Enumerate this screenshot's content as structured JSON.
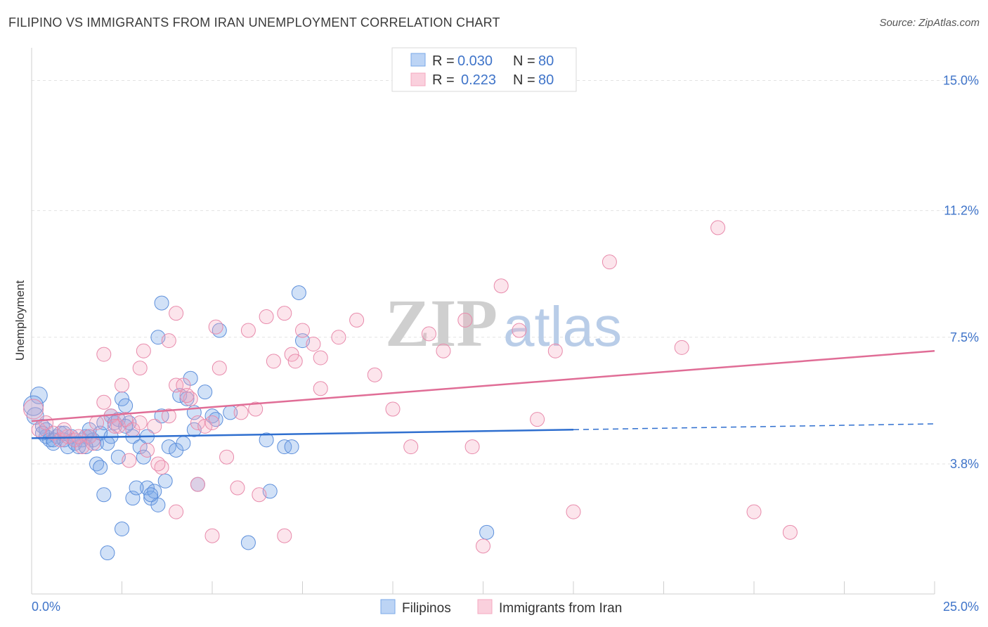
{
  "title": "FILIPINO VS IMMIGRANTS FROM IRAN UNEMPLOYMENT CORRELATION CHART",
  "source": "Source: ZipAtlas.com",
  "watermark": {
    "zip": "ZIP",
    "atlas": "atlas"
  },
  "chart_data": {
    "type": "scatter",
    "title": "FILIPINO VS IMMIGRANTS FROM IRAN UNEMPLOYMENT CORRELATION CHART",
    "xlabel": "",
    "ylabel": "Unemployment",
    "xlim": [
      0,
      25
    ],
    "ylim": [
      0,
      15.75
    ],
    "x_tick_labels": [
      "0.0%",
      "25.0%"
    ],
    "y_ticks": [
      3.8,
      7.5,
      11.2,
      15.0
    ],
    "y_tick_labels": [
      "3.8%",
      "7.5%",
      "11.2%",
      "15.0%"
    ],
    "grid": true,
    "legend": [
      {
        "name": "Filipinos",
        "r_label": "R = ",
        "r_value": "0.030",
        "n_label": "N = ",
        "n_value": "80",
        "color": "#7aa8e8",
        "stroke": "#4f86d6"
      },
      {
        "name": "Immigrants from Iran",
        "r_label": "R = ",
        "r_value": "0.223",
        "n_label": "N = ",
        "n_value": "80",
        "color": "#f4a8c0",
        "stroke": "#e07a9c"
      }
    ],
    "trend_lines": [
      {
        "series": "Filipinos",
        "x_start": 0,
        "y_start": 4.55,
        "x_solid_end": 15,
        "y_solid_end": 4.8,
        "x_end": 25,
        "y_end": 4.97,
        "color": "#2f6fcf"
      },
      {
        "series": "Immigrants from Iran",
        "x_start": 0,
        "y_start": 5.05,
        "x_end": 25,
        "y_end": 7.1,
        "color": "#e06d96"
      }
    ],
    "series": [
      {
        "name": "Filipinos",
        "points": [
          [
            0.2,
            5.8
          ],
          [
            0.1,
            5.2
          ],
          [
            0.3,
            4.9
          ],
          [
            0.4,
            4.6
          ],
          [
            0.5,
            4.5
          ],
          [
            0.6,
            4.4
          ],
          [
            0.7,
            4.6
          ],
          [
            0.8,
            4.7
          ],
          [
            0.9,
            4.5
          ],
          [
            1.0,
            4.3
          ],
          [
            1.1,
            4.6
          ],
          [
            1.2,
            4.4
          ],
          [
            1.3,
            4.3
          ],
          [
            1.4,
            4.5
          ],
          [
            1.5,
            4.6
          ],
          [
            1.6,
            4.8
          ],
          [
            1.7,
            4.5
          ],
          [
            1.8,
            4.4
          ],
          [
            1.9,
            4.7
          ],
          [
            2.0,
            5.0
          ],
          [
            2.1,
            4.4
          ],
          [
            2.2,
            5.2
          ],
          [
            2.3,
            5.0
          ],
          [
            2.4,
            5.1
          ],
          [
            2.5,
            5.7
          ],
          [
            2.6,
            5.5
          ],
          [
            2.7,
            5.0
          ],
          [
            2.8,
            4.6
          ],
          [
            3.0,
            4.3
          ],
          [
            3.1,
            4.0
          ],
          [
            3.2,
            3.1
          ],
          [
            3.3,
            2.8
          ],
          [
            3.4,
            3.0
          ],
          [
            3.5,
            2.6
          ],
          [
            3.6,
            5.2
          ],
          [
            3.7,
            3.3
          ],
          [
            3.8,
            4.3
          ],
          [
            4.0,
            4.2
          ],
          [
            4.1,
            5.8
          ],
          [
            4.2,
            4.4
          ],
          [
            4.3,
            5.7
          ],
          [
            4.4,
            6.3
          ],
          [
            4.5,
            4.8
          ],
          [
            4.6,
            3.2
          ],
          [
            4.8,
            5.9
          ],
          [
            5.0,
            5.2
          ],
          [
            5.2,
            7.7
          ],
          [
            5.5,
            5.3
          ],
          [
            6.0,
            1.5
          ],
          [
            6.5,
            4.5
          ],
          [
            6.6,
            3.0
          ],
          [
            7.0,
            4.3
          ],
          [
            7.2,
            4.3
          ],
          [
            7.5,
            7.4
          ],
          [
            7.4,
            8.8
          ],
          [
            3.5,
            7.5
          ],
          [
            3.6,
            8.5
          ],
          [
            2.5,
            1.9
          ],
          [
            2.1,
            1.2
          ],
          [
            1.8,
            3.8
          ],
          [
            1.9,
            3.7
          ],
          [
            2.0,
            2.9
          ],
          [
            2.8,
            2.8
          ],
          [
            2.9,
            3.1
          ],
          [
            3.3,
            2.9
          ],
          [
            2.4,
            4.0
          ],
          [
            1.2,
            4.5
          ],
          [
            0.9,
            4.7
          ],
          [
            0.6,
            4.5
          ],
          [
            0.4,
            4.8
          ],
          [
            0.3,
            4.7
          ],
          [
            1.5,
            4.3
          ],
          [
            1.6,
            4.6
          ],
          [
            2.2,
            4.6
          ],
          [
            2.6,
            4.9
          ],
          [
            3.2,
            4.6
          ],
          [
            4.5,
            5.3
          ],
          [
            5.1,
            5.1
          ],
          [
            12.6,
            1.8
          ],
          [
            0.05,
            5.5
          ]
        ],
        "sizes": [
          12,
          12,
          10,
          10,
          10,
          10,
          10,
          10,
          10,
          10,
          10,
          10,
          10,
          10,
          10,
          10,
          10,
          10,
          10,
          10,
          10,
          10,
          10,
          10,
          10,
          10,
          10,
          10,
          10,
          10,
          10,
          10,
          10,
          10,
          10,
          10,
          10,
          10,
          10,
          10,
          10,
          10,
          10,
          10,
          10,
          10,
          10,
          10,
          10,
          10,
          10,
          10,
          10,
          10,
          10,
          10,
          10,
          10,
          10,
          10,
          10,
          10,
          10,
          10,
          10,
          10,
          10,
          10,
          10,
          10,
          10,
          10,
          10,
          10,
          10,
          10,
          10,
          10,
          10,
          14
        ]
      },
      {
        "name": "Immigrants from Iran",
        "points": [
          [
            0.05,
            5.4
          ],
          [
            0.2,
            4.8
          ],
          [
            0.4,
            5.0
          ],
          [
            0.6,
            4.7
          ],
          [
            0.8,
            4.5
          ],
          [
            1.0,
            4.6
          ],
          [
            1.2,
            4.5
          ],
          [
            1.4,
            4.3
          ],
          [
            1.6,
            4.6
          ],
          [
            1.8,
            5.0
          ],
          [
            2.0,
            5.6
          ],
          [
            2.2,
            5.2
          ],
          [
            2.4,
            4.9
          ],
          [
            2.6,
            5.1
          ],
          [
            2.8,
            4.8
          ],
          [
            3.0,
            5.0
          ],
          [
            3.2,
            4.2
          ],
          [
            3.4,
            4.9
          ],
          [
            3.6,
            3.7
          ],
          [
            3.8,
            5.2
          ],
          [
            4.0,
            6.1
          ],
          [
            4.2,
            6.1
          ],
          [
            4.4,
            5.7
          ],
          [
            4.6,
            5.0
          ],
          [
            4.8,
            4.9
          ],
          [
            5.0,
            5.0
          ],
          [
            5.2,
            6.6
          ],
          [
            5.4,
            4.0
          ],
          [
            6.0,
            7.7
          ],
          [
            6.2,
            5.4
          ],
          [
            6.5,
            8.1
          ],
          [
            6.7,
            6.8
          ],
          [
            7.0,
            8.2
          ],
          [
            7.2,
            7.0
          ],
          [
            7.5,
            7.7
          ],
          [
            7.8,
            7.3
          ],
          [
            8.0,
            6.9
          ],
          [
            8.5,
            7.5
          ],
          [
            9.0,
            8.0
          ],
          [
            9.5,
            6.4
          ],
          [
            10.0,
            5.4
          ],
          [
            10.5,
            4.3
          ],
          [
            11.0,
            7.6
          ],
          [
            12.0,
            8.0
          ],
          [
            12.2,
            4.3
          ],
          [
            13.0,
            9.0
          ],
          [
            13.5,
            7.7
          ],
          [
            14.0,
            5.1
          ],
          [
            14.5,
            7.1
          ],
          [
            15.0,
            2.4
          ],
          [
            16.0,
            9.7
          ],
          [
            18.0,
            7.2
          ],
          [
            19.0,
            10.7
          ],
          [
            20.0,
            2.4
          ],
          [
            21.0,
            1.8
          ],
          [
            12.5,
            1.4
          ],
          [
            11.4,
            7.1
          ],
          [
            8.0,
            6.0
          ],
          [
            7.0,
            1.7
          ],
          [
            5.7,
            3.1
          ],
          [
            5.0,
            1.7
          ],
          [
            4.6,
            3.2
          ],
          [
            4.0,
            2.4
          ],
          [
            3.5,
            3.8
          ],
          [
            3.0,
            6.6
          ],
          [
            2.5,
            6.1
          ],
          [
            2.0,
            7.0
          ],
          [
            3.1,
            7.1
          ],
          [
            3.8,
            7.4
          ],
          [
            4.0,
            8.2
          ],
          [
            5.1,
            7.8
          ],
          [
            5.8,
            5.3
          ],
          [
            2.7,
            3.9
          ],
          [
            2.3,
            4.9
          ],
          [
            1.7,
            4.4
          ],
          [
            0.9,
            4.8
          ],
          [
            1.3,
            4.6
          ],
          [
            4.3,
            5.8
          ],
          [
            6.3,
            2.9
          ],
          [
            7.3,
            6.8
          ]
        ],
        "sizes": [
          14,
          10,
          10,
          10,
          10,
          10,
          10,
          10,
          10,
          10,
          10,
          10,
          10,
          10,
          10,
          10,
          10,
          10,
          10,
          10,
          10,
          10,
          10,
          10,
          10,
          10,
          10,
          10,
          10,
          10,
          10,
          10,
          10,
          10,
          10,
          10,
          10,
          10,
          10,
          10,
          10,
          10,
          10,
          10,
          10,
          10,
          10,
          10,
          10,
          10,
          10,
          10,
          10,
          10,
          10,
          10,
          10,
          10,
          10,
          10,
          10,
          10,
          10,
          10,
          10,
          10,
          10,
          10,
          10,
          10,
          10,
          10,
          10,
          10,
          10,
          10,
          10,
          10,
          10,
          10
        ]
      }
    ]
  }
}
